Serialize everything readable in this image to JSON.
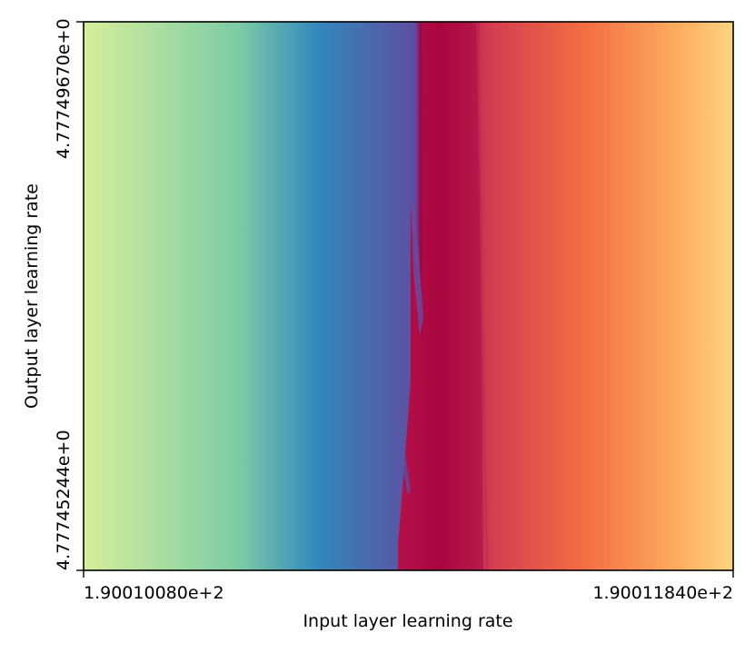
{
  "chart_data": {
    "type": "heatmap",
    "title": "",
    "xlabel": "Input layer learning rate",
    "ylabel": "Output layer learning rate",
    "x_ticks": [
      "1.90010080e+2",
      "1.90011840e+2"
    ],
    "y_ticks": [
      "4.77745244e+0",
      "4.77749670e+0"
    ],
    "colormap": "Spectral",
    "colormap_stops": [
      "#d6ee9b",
      "#7ccba5",
      "#3288bd",
      "#5e4fa2",
      "#9e0142",
      "#d53e4f",
      "#f46d43",
      "#fdae61",
      "#fed481"
    ],
    "grid": false,
    "colorbar": false
  }
}
